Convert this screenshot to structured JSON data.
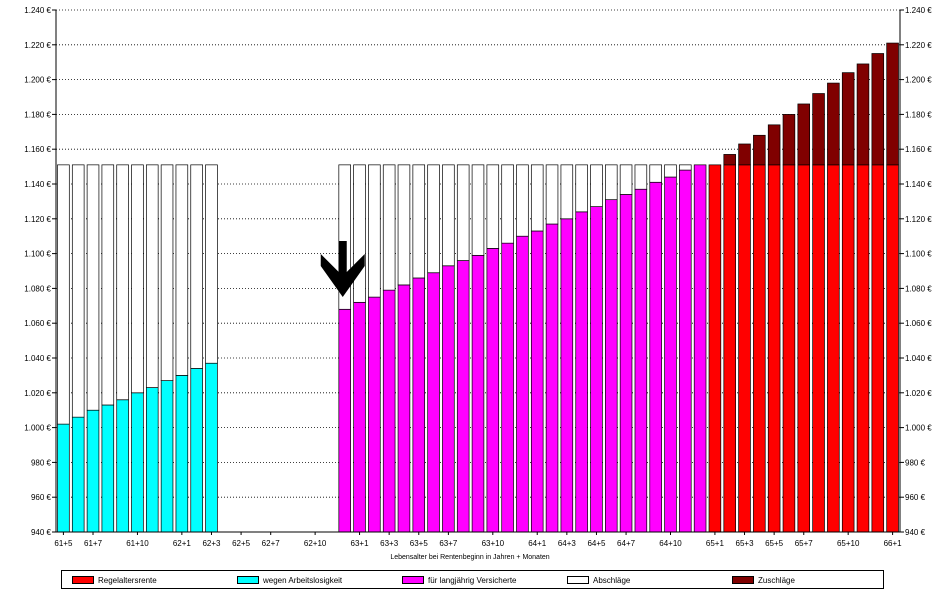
{
  "chart_data": {
    "type": "bar",
    "stacked": true,
    "title": "",
    "xlabel": "Lebensalter bei Rentenbeginn in Jahren + Monaten",
    "ylabel": "",
    "ylim": [
      940,
      1240
    ],
    "yticks": [
      "940 €",
      "960 €",
      "980 €",
      "1.000 €",
      "1.020 €",
      "1.040 €",
      "1.060 €",
      "1.080 €",
      "1.100 €",
      "1.120 €",
      "1.140 €",
      "1.160 €",
      "1.180 €",
      "1.200 €",
      "1.220 €",
      "1.240 €"
    ],
    "categories": [
      "61+5",
      "61+6",
      "61+7",
      "61+8",
      "61+9",
      "61+10",
      "61+11",
      "62+0",
      "62+1",
      "62+2",
      "62+3",
      "62+4",
      "62+5",
      "62+6",
      "62+7",
      "62+8",
      "62+9",
      "62+10",
      "62+11",
      "63+0",
      "63+1",
      "63+2",
      "63+3",
      "63+4",
      "63+5",
      "63+6",
      "63+7",
      "63+8",
      "63+9",
      "63+10",
      "63+11",
      "64+0",
      "64+1",
      "64+2",
      "64+3",
      "64+4",
      "64+5",
      "64+6",
      "64+7",
      "64+8",
      "64+9",
      "64+10",
      "64+11",
      "65+0",
      "65+1",
      "65+2",
      "65+3",
      "65+4",
      "65+5",
      "65+6",
      "65+7",
      "65+8",
      "65+9",
      "65+10",
      "65+11",
      "66+0",
      "66+1"
    ],
    "xtick_labels": [
      "61+5",
      "61+7",
      "61+10",
      "62+1",
      "62+3",
      "62+5",
      "62+7",
      "62+10",
      "63+1",
      "63+3",
      "63+5",
      "63+7",
      "63+10",
      "64+1",
      "64+3",
      "64+5",
      "64+7",
      "64+10",
      "65+1",
      "65+3",
      "65+5",
      "65+7",
      "65+10",
      "66+1"
    ],
    "series": [
      {
        "name": "Regelaltersrente",
        "color": "#ff0000",
        "values": [
          null,
          null,
          null,
          null,
          null,
          null,
          null,
          null,
          null,
          null,
          null,
          null,
          null,
          null,
          null,
          null,
          null,
          null,
          null,
          null,
          null,
          null,
          null,
          null,
          null,
          null,
          null,
          null,
          null,
          null,
          null,
          null,
          null,
          null,
          null,
          null,
          null,
          null,
          null,
          null,
          null,
          null,
          null,
          null,
          1151,
          1151,
          1151,
          1151,
          1151,
          1151,
          1151,
          1151,
          1151,
          1151,
          1151,
          1151,
          1151
        ]
      },
      {
        "name": "wegen Arbeitslosigkeit",
        "color": "#00ffff",
        "values": [
          1002,
          1006,
          1010,
          1013,
          1016,
          1020,
          1023,
          1027,
          1030,
          1034,
          1037,
          null,
          null,
          null,
          null,
          null,
          null,
          null,
          null,
          null,
          null,
          null,
          null,
          null,
          null,
          null,
          null,
          null,
          null,
          null,
          null,
          null,
          null,
          null,
          null,
          null,
          null,
          null,
          null,
          null,
          null,
          null,
          null,
          null,
          null,
          null,
          null,
          null,
          null,
          null,
          null,
          null,
          null,
          null,
          null,
          null,
          null
        ]
      },
      {
        "name": "für langjährig Versicherte",
        "color": "#ff00ff",
        "values": [
          null,
          null,
          null,
          null,
          null,
          null,
          null,
          null,
          null,
          null,
          null,
          null,
          null,
          null,
          null,
          null,
          null,
          null,
          null,
          1068,
          1072,
          1075,
          1079,
          1082,
          1086,
          1089,
          1093,
          1096,
          1099,
          1103,
          1106,
          1110,
          1113,
          1117,
          1120,
          1124,
          1127,
          1131,
          1134,
          1137,
          1141,
          1144,
          1148,
          1151,
          null,
          null,
          null,
          null,
          null,
          null,
          null,
          null,
          null,
          null,
          null,
          null,
          null
        ]
      },
      {
        "name": "Abschläge",
        "color": "#ffffff",
        "values": [
          149,
          145,
          141,
          138,
          135,
          131,
          128,
          124,
          121,
          117,
          114,
          null,
          null,
          null,
          null,
          null,
          null,
          null,
          null,
          83,
          79,
          76,
          72,
          69,
          65,
          62,
          58,
          55,
          52,
          48,
          45,
          41,
          38,
          34,
          31,
          27,
          24,
          20,
          17,
          14,
          10,
          7,
          3,
          0,
          null,
          null,
          null,
          null,
          null,
          null,
          null,
          null,
          null,
          null,
          null,
          null,
          null
        ]
      },
      {
        "name": "Zuschläge",
        "color": "#800000",
        "values": [
          null,
          null,
          null,
          null,
          null,
          null,
          null,
          null,
          null,
          null,
          null,
          null,
          null,
          null,
          null,
          null,
          null,
          null,
          null,
          null,
          null,
          null,
          null,
          null,
          null,
          null,
          null,
          null,
          null,
          null,
          null,
          null,
          null,
          null,
          null,
          null,
          null,
          null,
          null,
          null,
          null,
          null,
          null,
          null,
          0,
          6,
          12,
          17,
          23,
          29,
          35,
          41,
          47,
          53,
          58,
          64,
          70
        ]
      }
    ],
    "annotations": [
      {
        "type": "arrow",
        "direction": "down",
        "category": "63+0"
      }
    ],
    "legend_placement": "bottom",
    "grid": true
  }
}
